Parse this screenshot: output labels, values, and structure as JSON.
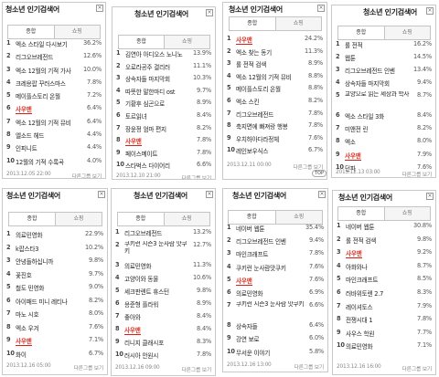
{
  "panels": [
    {
      "title": "청소년 인기검색어",
      "tabs": [
        "종합",
        "쇼핑"
      ],
      "items": [
        {
          "rank": "1",
          "keyword": "엑소 스타일 다시보기",
          "pct": "36.2%"
        },
        {
          "rank": "2",
          "keyword": "리그오브레전드",
          "pct": "12.6%"
        },
        {
          "rank": "3",
          "keyword": "엑소 12월의 기적 가사",
          "pct": "10.0%"
        },
        {
          "rank": "4",
          "keyword": "크레용팝 꾸러스마스",
          "pct": "7.8%"
        },
        {
          "rank": "5",
          "keyword": "메이플스토리 온월",
          "pct": "7.2%"
        },
        {
          "rank": "6",
          "keyword": "사우맨",
          "pct": "6.4%",
          "highlight": true
        },
        {
          "rank": "7",
          "keyword": "엑소 12월의 기적 뮤비",
          "pct": "6.4%"
        },
        {
          "rank": "8",
          "keyword": "엘소드 헤드",
          "pct": "4.4%"
        },
        {
          "rank": "9",
          "keyword": "인피니트",
          "pct": "4.4%"
        },
        {
          "rank": "10",
          "keyword": "12월의 기적 수록곡",
          "pct": "4.0%"
        }
      ],
      "footer_time": "2013.12.05 22:00",
      "footer_link": "다른그룹 보기"
    },
    {
      "title": "청소년 인기검색어",
      "tabs": [
        "종합",
        "쇼핑"
      ],
      "items": [
        {
          "rank": "1",
          "keyword": "김연아 아디오스 노니노",
          "pct": "13.9%"
        },
        {
          "rank": "2",
          "keyword": "오로라공주 결리러",
          "pct": "11.1%"
        },
        {
          "rank": "3",
          "keyword": "상속자들 마지막회",
          "pct": "10.3%"
        },
        {
          "rank": "4",
          "keyword": "따뜻한 말한마디 ost",
          "pct": "9.7%"
        },
        {
          "rank": "5",
          "keyword": "기황후 심곤으로",
          "pct": "8.9%"
        },
        {
          "rank": "6",
          "keyword": "토르읽녀",
          "pct": "8.4%"
        },
        {
          "rank": "7",
          "keyword": "장윤정 엄마 편지",
          "pct": "8.2%"
        },
        {
          "rank": "8",
          "keyword": "사우맨",
          "pct": "7.8%",
          "highlight": true
        },
        {
          "rank": "9",
          "keyword": "페이스메이트",
          "pct": "7.8%"
        },
        {
          "rank": "10",
          "keyword": "스타벅스 다이어리",
          "pct": "6.6%"
        }
      ],
      "footer_time": "2013.12.10 21:00",
      "footer_link": "다른그룹 보기"
    },
    {
      "title": "청소년 인기검색어",
      "tabs": [
        "종합",
        "쇼핑"
      ],
      "items": [
        {
          "rank": "1",
          "keyword": "사우맨",
          "pct": "24.2%",
          "highlight": true
        },
        {
          "rank": "2",
          "keyword": "엑소 찾는 동기",
          "pct": "11.3%"
        },
        {
          "rank": "3",
          "keyword": "롤 전적 검색",
          "pct": "8.9%"
        },
        {
          "rank": "4",
          "keyword": "엑소 12월의 기적 뮤비",
          "pct": "8.8%"
        },
        {
          "rank": "5",
          "keyword": "메이플스토리 온월",
          "pct": "8.8%"
        },
        {
          "rank": "6",
          "keyword": "엑소 스킨",
          "pct": "8.2%"
        },
        {
          "rank": "7",
          "keyword": "리그오브레전드",
          "pct": "7.8%"
        },
        {
          "rank": "8",
          "keyword": "축지면에 빠져랑 행봉",
          "pct": "7.8%"
        },
        {
          "rank": "9",
          "keyword": "우치하아다라정체",
          "pct": "7.6%"
        },
        {
          "rank": "10",
          "keyword": "레인보우식스",
          "pct": "6.7%"
        }
      ],
      "footer_time": "2013.12.11 00:00",
      "footer_link": "다른그룹 보기",
      "badge": "TOP"
    },
    {
      "title": "청소년 인기검색어",
      "tabs": [
        "종합",
        "쇼핑"
      ],
      "items": [
        {
          "rank": "1",
          "keyword": "롤 전적",
          "pct": "16.2%"
        },
        {
          "rank": "2",
          "keyword": "웹툰",
          "pct": "14.5%"
        },
        {
          "rank": "3",
          "keyword": "리그오브레전드 인벤",
          "pct": "13.4%"
        },
        {
          "rank": "4",
          "keyword": "상속자들 마지막회",
          "pct": "9.4%"
        },
        {
          "rank": "5",
          "keyword": "교양으로 읽는 세상과 학사",
          "pct": "8.7%",
          "wrap": true
        },
        {
          "rank": "6",
          "keyword": "엑소 스타일 3화",
          "pct": "8.4%"
        },
        {
          "rank": "7",
          "keyword": "미앤전 린",
          "pct": "8.2%"
        },
        {
          "rank": "8",
          "keyword": "엑소",
          "pct": "8.0%"
        },
        {
          "rank": "9",
          "keyword": "사우맨",
          "pct": "7.9%",
          "highlight": true
        },
        {
          "rank": "10",
          "keyword": "던파",
          "pct": "7.6%"
        }
      ],
      "footer_time": "2013.12.13 03:00",
      "footer_link": "다른그룹 보기"
    },
    {
      "title": "청소년 인기검색어",
      "tabs": [
        "종합",
        "쇼핑"
      ],
      "items": [
        {
          "rank": "1",
          "keyword": "의료민영화",
          "pct": "22.9%"
        },
        {
          "rank": "2",
          "keyword": "k팝스타3",
          "pct": "10.2%"
        },
        {
          "rank": "3",
          "keyword": "안녕들하십니까",
          "pct": "9.8%"
        },
        {
          "rank": "4",
          "keyword": "꽃진호",
          "pct": "9.7%"
        },
        {
          "rank": "5",
          "keyword": "철도 민영화",
          "pct": "9.0%"
        },
        {
          "rank": "6",
          "keyword": "아이패드 미니 레티나",
          "pct": "8.2%"
        },
        {
          "rank": "7",
          "keyword": "마노 시호",
          "pct": "8.0%"
        },
        {
          "rank": "8",
          "keyword": "엑소 우겨",
          "pct": "7.6%"
        },
        {
          "rank": "9",
          "keyword": "사우맨",
          "pct": "7.1%",
          "highlight": true
        },
        {
          "rank": "10",
          "keyword": "화이",
          "pct": "6.7%"
        }
      ],
      "footer_time": "2013.12.16 05:00",
      "footer_link": "다른그룹 보기"
    },
    {
      "title": "청소년 인기검색어",
      "tabs": [
        "종합",
        "쇼핑"
      ],
      "items": [
        {
          "rank": "1",
          "keyword": "리그오브레전드",
          "pct": "13.2%"
        },
        {
          "rank": "2",
          "keyword": "쿠키런 시즌3 눈사람 맛쿠키",
          "pct": "12.7%",
          "wrap": true
        },
        {
          "rank": "3",
          "keyword": "의료민영화",
          "pct": "11.3%"
        },
        {
          "rank": "4",
          "keyword": "고양이와 동물",
          "pct": "10.6%"
        },
        {
          "rank": "5",
          "keyword": "세크판렌트 휴스턴",
          "pct": "9.8%"
        },
        {
          "rank": "6",
          "keyword": "용준형 플라워",
          "pct": "8.9%"
        },
        {
          "rank": "7",
          "keyword": "좋아와",
          "pct": "8.4%"
        },
        {
          "rank": "8",
          "keyword": "사우맨",
          "pct": "8.4%",
          "highlight": true
        },
        {
          "rank": "9",
          "keyword": "리니지 클래시포",
          "pct": "8.3%"
        },
        {
          "rank": "10",
          "keyword": "러시아 안원시",
          "pct": "7.8%"
        }
      ],
      "footer_time": "2013.12.16 09:00",
      "footer_link": "다른그룹 보기"
    },
    {
      "title": "청소년 인기검색어",
      "tabs": [
        "종합",
        "쇼핑"
      ],
      "items": [
        {
          "rank": "1",
          "keyword": "네이버 웹툰",
          "pct": "35.4%"
        },
        {
          "rank": "2",
          "keyword": "리그오브레전드 인벤",
          "pct": "9.4%"
        },
        {
          "rank": "3",
          "keyword": "마인크래프트",
          "pct": "7.8%"
        },
        {
          "rank": "4",
          "keyword": "쿠키런 눈사람맛쿠키",
          "pct": "7.6%"
        },
        {
          "rank": "5",
          "keyword": "사우맨",
          "pct": "7.6%",
          "highlight": true
        },
        {
          "rank": "6",
          "keyword": "의료민영화",
          "pct": "6.9%"
        },
        {
          "rank": "7",
          "keyword": "쿠키런 시즌3 눈사람 맛쿠키",
          "pct": "6.6%",
          "wrap": true
        },
        {
          "rank": "8",
          "keyword": "상속자들",
          "pct": "6.4%"
        },
        {
          "rank": "9",
          "keyword": "강연 보로",
          "pct": "6.0%"
        },
        {
          "rank": "10",
          "keyword": "무서운 이야기",
          "pct": "5.8%"
        }
      ],
      "footer_time": "2013.12.16 13:00",
      "footer_link": "다른그룹 보기"
    },
    {
      "title": "청소년 인기검색어",
      "tabs": [
        "종합",
        "쇼핑"
      ],
      "items": [
        {
          "rank": "1",
          "keyword": "네이버 웹툰",
          "pct": "30.8%"
        },
        {
          "rank": "2",
          "keyword": "롤 전적 검색",
          "pct": "9.8%"
        },
        {
          "rank": "3",
          "keyword": "사우맨",
          "pct": "9.2%",
          "highlight": true
        },
        {
          "rank": "4",
          "keyword": "아화와나",
          "pct": "8.7%"
        },
        {
          "rank": "5",
          "keyword": "마인크래프트",
          "pct": "8.5%"
        },
        {
          "rank": "6",
          "keyword": "러바위토렌 2.7",
          "pct": "8.3%"
        },
        {
          "rank": "7",
          "keyword": "레이셔토스",
          "pct": "7.9%"
        },
        {
          "rank": "8",
          "keyword": "전쟁시대 1",
          "pct": "7.8%"
        },
        {
          "rank": "9",
          "keyword": "사우스 학원",
          "pct": "7.7%"
        },
        {
          "rank": "10",
          "keyword": "의료민영화",
          "pct": "7.1%"
        }
      ],
      "footer_time": "2013.12.16 16:00",
      "footer_link": "다른그룹 보기"
    }
  ],
  "colors": {
    "highlight": "#e0352a",
    "underline": "#d0241a"
  }
}
